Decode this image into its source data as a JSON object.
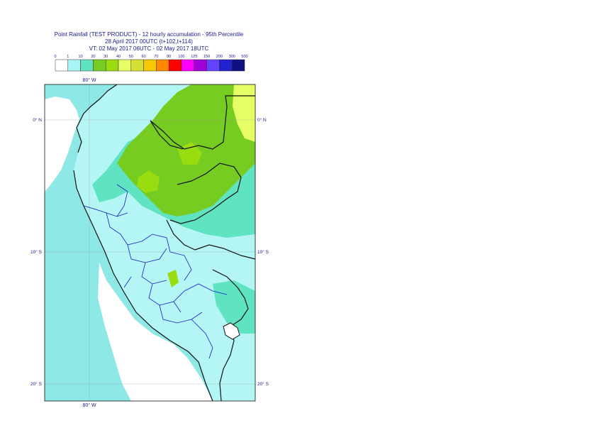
{
  "title": {
    "line1": "Point Rainfall (TEST PRODUCT) - 12 hourly accumulation - 95th Percentile",
    "line2": "28 April 2017 00UTC (t+102,t+114)",
    "line3": "VT: 02 May 2017 06UTC - 02 May 2017 18UTC"
  },
  "legend": {
    "thresholds": [
      "0",
      "1",
      "10",
      "20",
      "30",
      "40",
      "50",
      "60",
      "70",
      "80",
      "100",
      "125",
      "150",
      "200",
      "300",
      "500"
    ],
    "colors": [
      "#ffffff",
      "#a9f5f5",
      "#5fe3c0",
      "#77cc22",
      "#99dd11",
      "#e6ff66",
      "#d4e033",
      "#f5c800",
      "#ff8800",
      "#ff0000",
      "#ff00ff",
      "#a000d8",
      "#6644ff",
      "#2222cc",
      "#101080"
    ]
  },
  "map": {
    "lon_labels": {
      "top": "80° W",
      "bottom": "80° W"
    },
    "lat_labels": [
      "0° N",
      "10° S",
      "20° S"
    ],
    "extent": {
      "lon": [
        -83.5,
        -67.5
      ],
      "lat": [
        2.6,
        -21.3
      ]
    },
    "colors": {
      "sea": "#8ee8e6",
      "light": "#b4f6f6",
      "mid": "#5fe3c0",
      "green": "#77cc22",
      "bright": "#99dd11",
      "yellow": "#e6ff66",
      "white": "#ffffff",
      "border": "#111111",
      "province": "#1a1ac8",
      "grid": "#999999",
      "label": "#1a1a8c"
    }
  }
}
